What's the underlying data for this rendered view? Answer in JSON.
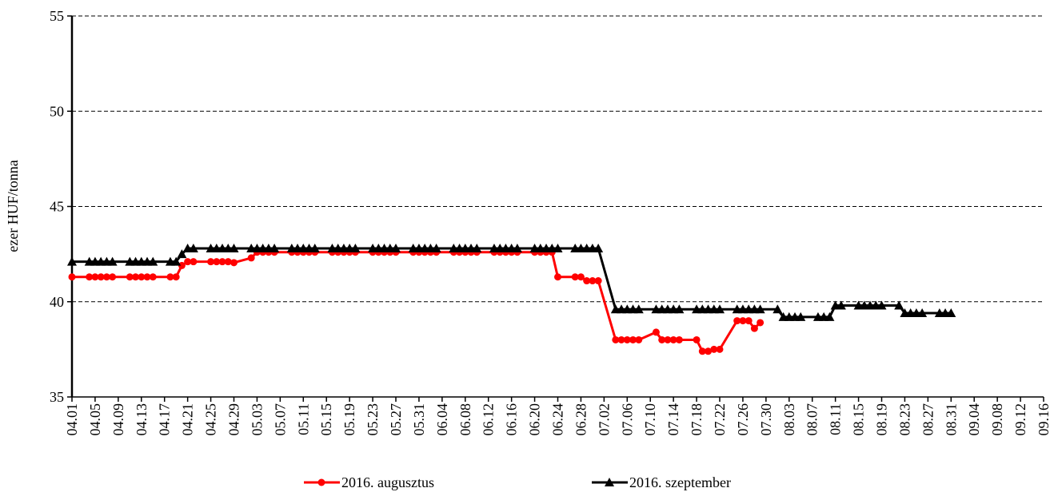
{
  "chart_data": {
    "type": "line",
    "ylabel": "ezer HUF/tonna",
    "x": [
      "04.01",
      "04.04",
      "04.05",
      "04.06",
      "04.07",
      "04.08",
      "04.11",
      "04.12",
      "04.13",
      "04.14",
      "04.15",
      "04.18",
      "04.19",
      "04.20",
      "04.21",
      "04.22",
      "04.25",
      "04.26",
      "04.27",
      "04.28",
      "04.29",
      "05.02",
      "05.03",
      "05.04",
      "05.05",
      "05.06",
      "05.09",
      "05.10",
      "05.11",
      "05.12",
      "05.13",
      "05.16",
      "05.17",
      "05.18",
      "05.19",
      "05.20",
      "05.23",
      "05.24",
      "05.25",
      "05.26",
      "05.27",
      "05.30",
      "05.31",
      "06.01",
      "06.02",
      "06.03",
      "06.06",
      "06.07",
      "06.08",
      "06.09",
      "06.10",
      "06.13",
      "06.14",
      "06.15",
      "06.16",
      "06.17",
      "06.20",
      "06.21",
      "06.22",
      "06.23",
      "06.24",
      "06.27",
      "06.28",
      "06.29",
      "06.30",
      "07.01",
      "07.04",
      "07.05",
      "07.06",
      "07.07",
      "07.08",
      "07.11",
      "07.12",
      "07.13",
      "07.14",
      "07.15",
      "07.18",
      "07.19",
      "07.20",
      "07.21",
      "07.22",
      "07.25",
      "07.26",
      "07.27",
      "07.28",
      "07.29",
      "08.01",
      "08.02",
      "08.03",
      "08.04",
      "08.05",
      "08.08",
      "08.09",
      "08.10",
      "08.11",
      "08.12",
      "08.15",
      "08.16",
      "08.17",
      "08.18",
      "08.19",
      "08.22",
      "08.23",
      "08.24",
      "08.25",
      "08.26",
      "08.29",
      "08.30",
      "08.31"
    ],
    "series": [
      {
        "name": "2016. augusztus",
        "color": "#ff0000",
        "marker": "circle",
        "values": [
          41.3,
          41.3,
          41.3,
          41.3,
          41.3,
          41.3,
          41.3,
          41.3,
          41.3,
          41.3,
          41.3,
          41.3,
          41.3,
          41.9,
          42.1,
          42.1,
          42.1,
          42.1,
          42.1,
          42.1,
          42.05,
          42.3,
          42.6,
          42.6,
          42.6,
          42.6,
          42.6,
          42.6,
          42.6,
          42.6,
          42.6,
          42.6,
          42.6,
          42.6,
          42.6,
          42.6,
          42.6,
          42.6,
          42.6,
          42.6,
          42.6,
          42.6,
          42.6,
          42.6,
          42.6,
          42.6,
          42.6,
          42.6,
          42.6,
          42.6,
          42.6,
          42.6,
          42.6,
          42.6,
          42.6,
          42.6,
          42.6,
          42.6,
          42.6,
          42.6,
          41.3,
          41.3,
          41.3,
          41.1,
          41.1,
          41.1,
          38.0,
          38.0,
          38.0,
          38.0,
          38.0,
          38.4,
          38.0,
          38.0,
          38.0,
          38.0,
          38.0,
          37.4,
          37.4,
          37.5,
          37.5,
          39.0,
          39.0,
          39.0,
          38.6,
          38.9,
          null,
          null,
          null,
          null,
          null,
          null,
          null,
          null,
          null,
          null,
          null,
          null,
          null,
          null,
          null,
          null,
          null,
          null,
          null,
          null,
          null,
          null,
          null
        ]
      },
      {
        "name": "2016. szeptember",
        "color": "#000000",
        "marker": "triangle",
        "values": [
          42.1,
          42.1,
          42.1,
          42.1,
          42.1,
          42.1,
          42.1,
          42.1,
          42.1,
          42.1,
          42.1,
          42.1,
          42.1,
          42.5,
          42.8,
          42.8,
          42.8,
          42.8,
          42.8,
          42.8,
          42.8,
          42.8,
          42.8,
          42.8,
          42.8,
          42.8,
          42.8,
          42.8,
          42.8,
          42.8,
          42.8,
          42.8,
          42.8,
          42.8,
          42.8,
          42.8,
          42.8,
          42.8,
          42.8,
          42.8,
          42.8,
          42.8,
          42.8,
          42.8,
          42.8,
          42.8,
          42.8,
          42.8,
          42.8,
          42.8,
          42.8,
          42.8,
          42.8,
          42.8,
          42.8,
          42.8,
          42.8,
          42.8,
          42.8,
          42.8,
          42.8,
          42.8,
          42.8,
          42.8,
          42.8,
          42.8,
          39.6,
          39.6,
          39.6,
          39.6,
          39.6,
          39.6,
          39.6,
          39.6,
          39.6,
          39.6,
          39.6,
          39.6,
          39.6,
          39.6,
          39.6,
          39.6,
          39.6,
          39.6,
          39.6,
          39.6,
          39.6,
          39.2,
          39.2,
          39.2,
          39.2,
          39.2,
          39.2,
          39.2,
          39.8,
          39.8,
          39.8,
          39.8,
          39.8,
          39.8,
          39.8,
          39.8,
          39.4,
          39.4,
          39.4,
          39.4,
          39.4,
          39.4,
          39.4
        ]
      }
    ],
    "xlim": [
      "04.01",
      "09.16"
    ],
    "xticks": [
      "04.01",
      "04.05",
      "04.09",
      "04.13",
      "04.17",
      "04.21",
      "04.25",
      "04.29",
      "05.03",
      "05.07",
      "05.11",
      "05.15",
      "05.19",
      "05.23",
      "05.27",
      "05.31",
      "06.04",
      "06.08",
      "06.12",
      "06.16",
      "06.20",
      "06.24",
      "06.28",
      "07.02",
      "07.06",
      "07.10",
      "07.14",
      "07.18",
      "07.22",
      "07.26",
      "07.30",
      "08.03",
      "08.07",
      "08.11",
      "08.15",
      "08.19",
      "08.23",
      "08.27",
      "08.31",
      "09.04",
      "09.08",
      "09.12",
      "09.16"
    ],
    "ylim": [
      35,
      55
    ],
    "yticks": [
      35,
      40,
      45,
      50,
      55
    ],
    "grid": true,
    "legend": "bottom"
  }
}
